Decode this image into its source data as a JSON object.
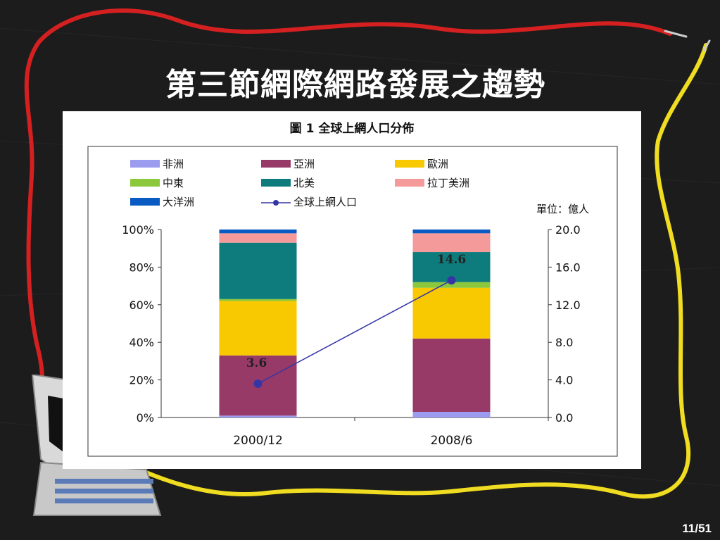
{
  "slide": {
    "title": "第三節網際網路發展之趨勢",
    "page_number": "11/51"
  },
  "colors": {
    "background": "#1c1c1c",
    "red_wire": "#d42020",
    "yellow_wire": "#f0dc20"
  },
  "chart_data": {
    "type": "bar",
    "stacked": true,
    "title": "圖 1 全球上網人口分佈",
    "unit_label": "單位：億人",
    "categories": [
      "2000/12",
      "2008/6"
    ],
    "left_axis": {
      "ticks": [
        "0%",
        "20%",
        "40%",
        "60%",
        "80%",
        "100%"
      ],
      "ylim": [
        0,
        100
      ]
    },
    "right_axis": {
      "ticks": [
        "0.0",
        "4.0",
        "8.0",
        "12.0",
        "16.0",
        "20.0"
      ],
      "ylim": [
        0,
        20
      ]
    },
    "grid": false,
    "legend_position": "top",
    "series": [
      {
        "name": "非洲",
        "color": "#9b9bef",
        "values": [
          1,
          3
        ]
      },
      {
        "name": "亞洲",
        "color": "#983a68",
        "values": [
          32,
          39
        ]
      },
      {
        "name": "歐洲",
        "color": "#f8c800",
        "values": [
          29,
          27
        ]
      },
      {
        "name": "中東",
        "color": "#8cc83c",
        "values": [
          1,
          3
        ]
      },
      {
        "name": "北美",
        "color": "#0e7c7c",
        "values": [
          30,
          16
        ]
      },
      {
        "name": "拉丁美洲",
        "color": "#f59a9a",
        "values": [
          5,
          10
        ]
      },
      {
        "name": "大洋洲",
        "color": "#0a5ac4",
        "values": [
          2,
          2
        ]
      }
    ],
    "line_series": {
      "name": "全球上網人口",
      "color": "#3535a8",
      "axis": "right",
      "values": [
        3.6,
        14.6
      ],
      "labels": [
        "3.6",
        "14.6"
      ]
    }
  }
}
